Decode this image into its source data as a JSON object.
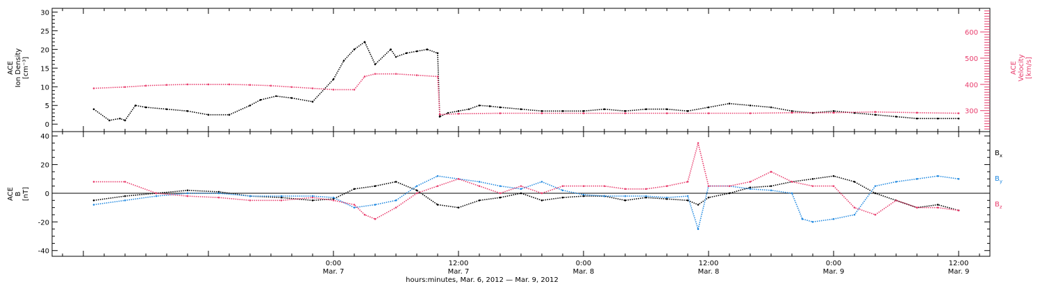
{
  "chart_data": [
    {
      "type": "scatter",
      "panel": "top",
      "left_ylabel": [
        "ACE",
        "Ion Density",
        "[cm⁻³]"
      ],
      "right_ylabel": [
        "ACE",
        "Velocity",
        "[km/s]"
      ],
      "ylim": [
        -2,
        31
      ],
      "y2lim": [
        220,
        690
      ],
      "yticks": [
        0,
        5,
        10,
        15,
        20,
        25,
        30
      ],
      "y2ticks": [
        300,
        400,
        500,
        600
      ],
      "y2ticklabels": [
        "300",
        "400",
        "500",
        "600"
      ],
      "series": [
        {
          "name": "Ion Density",
          "axis": "left",
          "color": "#000000",
          "x": [
            -23.0,
            -21.5,
            -20.5,
            -20.0,
            -19.0,
            -18.0,
            -16.0,
            -14.0,
            -12.0,
            -10.0,
            -8.0,
            -7.0,
            -5.5,
            -4.0,
            -2.0,
            0.0,
            1.0,
            2.0,
            3.0,
            4.0,
            5.5,
            6.0,
            7.0,
            8.0,
            9.0,
            10.0,
            10.2,
            11.0,
            12.0,
            13.0,
            14.0,
            15.0,
            16.0,
            18.0,
            20.0,
            22.0,
            24.0,
            26.0,
            28.0,
            30.0,
            32.0,
            34.0,
            36.0,
            38.0,
            40.0,
            42.0,
            44.0,
            46.0,
            48.0,
            50.0,
            52.0,
            54.0,
            56.0,
            58.0,
            60.0
          ],
          "y": [
            4.0,
            1.0,
            1.5,
            1.0,
            5.0,
            4.5,
            4.0,
            3.5,
            2.5,
            2.5,
            5.0,
            6.5,
            7.5,
            7.0,
            6.0,
            12.0,
            17.0,
            20.0,
            22.0,
            16.0,
            20.0,
            18.0,
            19.0,
            19.5,
            20.0,
            19.0,
            2.0,
            3.0,
            3.5,
            4.0,
            5.0,
            4.8,
            4.5,
            4.0,
            3.5,
            3.5,
            3.5,
            4.0,
            3.5,
            4.0,
            4.0,
            3.5,
            4.5,
            5.5,
            5.0,
            4.5,
            3.5,
            3.0,
            3.5,
            3.0,
            2.5,
            2.0,
            1.5,
            1.5,
            1.5
          ]
        },
        {
          "name": "Velocity",
          "axis": "right",
          "color": "#e83c6c",
          "x": [
            -23.0,
            -20.0,
            -18.0,
            -16.0,
            -14.0,
            -12.0,
            -10.0,
            -8.0,
            -6.0,
            -4.0,
            -2.0,
            0.0,
            2.0,
            3.0,
            4.0,
            6.0,
            8.0,
            10.0,
            10.2,
            12.0,
            16.0,
            20.0,
            24.0,
            28.0,
            32.0,
            36.0,
            40.0,
            44.0,
            48.0,
            52.0,
            56.0,
            60.0
          ],
          "y": [
            385,
            390,
            395,
            398,
            400,
            400,
            400,
            398,
            395,
            390,
            385,
            380,
            380,
            430,
            440,
            440,
            435,
            430,
            285,
            288,
            290,
            290,
            290,
            290,
            290,
            290,
            290,
            292,
            292,
            295,
            292,
            290
          ]
        }
      ]
    },
    {
      "type": "scatter",
      "panel": "bottom",
      "ylabel": [
        "ACE",
        "B",
        "[nT]"
      ],
      "ylim": [
        -44,
        43
      ],
      "yticks": [
        -40,
        -20,
        0,
        20,
        40
      ],
      "reference_line": 0,
      "series": [
        {
          "name": "Bx",
          "color": "#000000",
          "x": [
            -23.0,
            -20.0,
            -17.0,
            -14.0,
            -11.0,
            -8.0,
            -5.0,
            -2.0,
            0.0,
            2.0,
            4.0,
            6.0,
            8.0,
            10.0,
            12.0,
            14.0,
            16.0,
            18.0,
            20.0,
            22.0,
            24.0,
            26.0,
            28.0,
            30.0,
            32.0,
            34.0,
            35.0,
            36.0,
            38.0,
            40.0,
            42.0,
            44.0,
            46.0,
            48.0,
            50.0,
            52.0,
            54.0,
            56.0,
            58.0,
            60.0
          ],
          "y": [
            -5.0,
            -2.0,
            0.0,
            2.0,
            1.0,
            -2.0,
            -3.0,
            -5.0,
            -4.0,
            3.0,
            5.0,
            8.0,
            2.0,
            -8.0,
            -10.0,
            -5.0,
            -3.0,
            0.0,
            -5.0,
            -3.0,
            -2.0,
            -2.0,
            -5.0,
            -3.0,
            -4.0,
            -5.0,
            -8.0,
            -3.0,
            0.0,
            4.0,
            5.0,
            8.0,
            10.0,
            12.0,
            8.0,
            0.0,
            -5.0,
            -10.0,
            -8.0,
            -12.0
          ]
        },
        {
          "name": "By",
          "color": "#1f88e0",
          "x": [
            -23.0,
            -20.0,
            -17.0,
            -14.0,
            -11.0,
            -8.0,
            -5.0,
            -2.0,
            0.0,
            2.0,
            4.0,
            6.0,
            8.0,
            10.0,
            12.0,
            14.0,
            16.0,
            18.0,
            20.0,
            22.0,
            24.0,
            26.0,
            28.0,
            30.0,
            32.0,
            34.0,
            35.0,
            36.0,
            38.0,
            40.0,
            42.0,
            44.0,
            45.0,
            46.0,
            48.0,
            50.0,
            52.0,
            54.0,
            56.0,
            58.0,
            60.0
          ],
          "y": [
            -8.0,
            -5.0,
            -2.0,
            0.0,
            0.0,
            -2.0,
            -2.0,
            -2.0,
            -3.0,
            -10.0,
            -8.0,
            -5.0,
            5.0,
            12.0,
            10.0,
            8.0,
            5.0,
            3.0,
            8.0,
            2.0,
            -1.0,
            -2.0,
            -2.0,
            -2.0,
            -3.0,
            -2.0,
            -25.0,
            5.0,
            5.0,
            3.0,
            2.0,
            0.0,
            -18.0,
            -20.0,
            -18.0,
            -15.0,
            5.0,
            8.0,
            10.0,
            12.0,
            10.0
          ]
        },
        {
          "name": "Bz",
          "color": "#e83c6c",
          "x": [
            -23.0,
            -20.0,
            -17.0,
            -14.0,
            -11.0,
            -8.0,
            -5.0,
            -2.0,
            0.0,
            2.0,
            3.0,
            4.0,
            6.0,
            8.0,
            10.0,
            12.0,
            14.0,
            16.0,
            18.0,
            20.0,
            22.0,
            24.0,
            26.0,
            28.0,
            30.0,
            32.0,
            34.0,
            35.0,
            36.0,
            38.0,
            40.0,
            42.0,
            44.0,
            46.0,
            48.0,
            50.0,
            52.0,
            54.0,
            56.0,
            58.0,
            60.0
          ],
          "y": [
            8.0,
            8.0,
            0.0,
            -2.0,
            -3.0,
            -5.0,
            -5.0,
            -3.0,
            -5.0,
            -8.0,
            -15.0,
            -18.0,
            -10.0,
            0.0,
            5.0,
            10.0,
            5.0,
            0.0,
            5.0,
            0.0,
            5.0,
            5.0,
            5.0,
            3.0,
            3.0,
            5.0,
            8.0,
            35.0,
            5.0,
            5.0,
            8.0,
            15.0,
            8.0,
            5.0,
            5.0,
            -10.0,
            -15.0,
            -5.0,
            -10.0,
            -10.0,
            -12.0
          ]
        }
      ]
    }
  ],
  "legend": {
    "bx": [
      "B",
      "x"
    ],
    "by": [
      "B",
      "y"
    ],
    "bz": [
      "B",
      "z"
    ]
  },
  "x_axis": {
    "range_hours": [
      -27,
      63
    ],
    "ticks_hours": [
      0,
      12,
      24,
      36,
      48,
      60
    ],
    "tick_time_labels": [
      "0:00",
      "12:00",
      "0:00",
      "12:00",
      "0:00",
      "12:00"
    ],
    "tick_date_labels": [
      "Mar. 7",
      "Mar. 7",
      "Mar. 8",
      "Mar. 8",
      "Mar. 9",
      "Mar. 9"
    ],
    "title": "hours:minutes, Mar.  6, 2012 — Mar.  9, 2012"
  }
}
